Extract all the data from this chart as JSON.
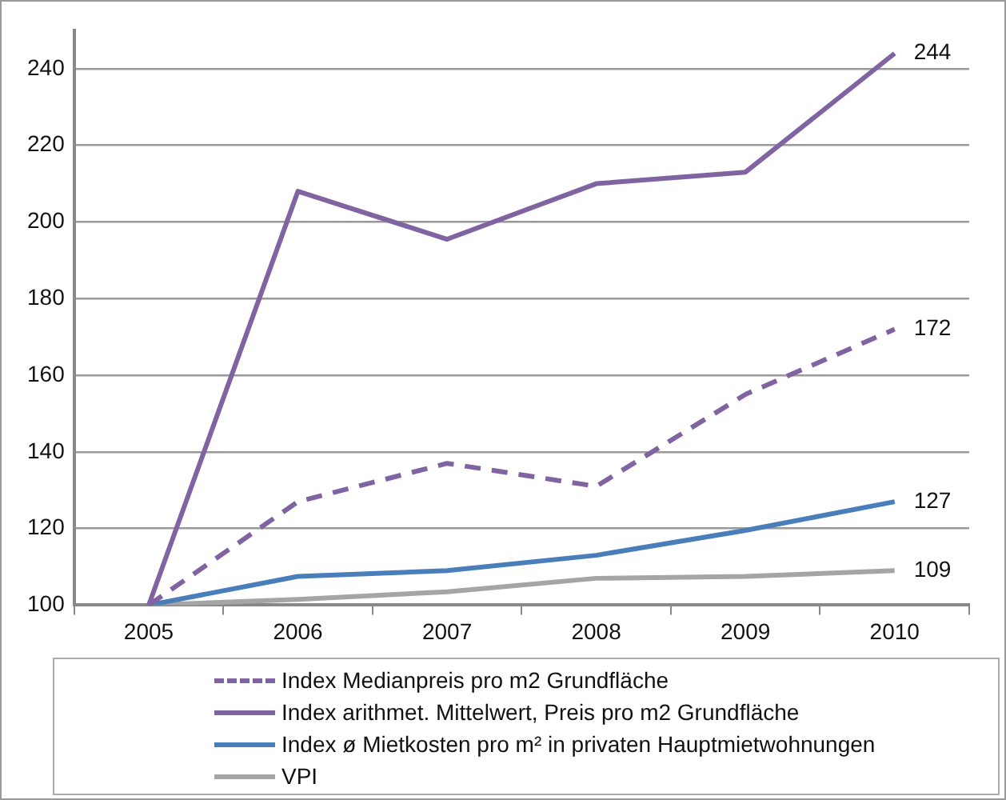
{
  "chart_data": {
    "type": "line",
    "categories": [
      "2005",
      "2006",
      "2007",
      "2008",
      "2009",
      "2010"
    ],
    "series": [
      {
        "name": "Index Medianpreis pro m2 Grundfläche",
        "color": "#8064a2",
        "line_style": "dashed",
        "values": [
          100,
          127,
          137,
          131,
          155,
          172
        ],
        "value_labels": [
          null,
          null,
          null,
          null,
          null,
          "172"
        ]
      },
      {
        "name": "Index arithmet. Mittelwert, Preis pro m2 Grundfläche",
        "color": "#8064a2",
        "values": [
          100,
          208,
          195.5,
          210,
          213,
          244
        ],
        "value_labels": [
          null,
          null,
          null,
          null,
          null,
          "244"
        ]
      },
      {
        "name": "Index ø Mietkosten pro m² in privaten Hauptmietwohnungen",
        "color": "#4a7ebb",
        "values": [
          100,
          107.5,
          109,
          113,
          119.5,
          127
        ],
        "value_labels": [
          null,
          null,
          null,
          null,
          null,
          "127"
        ]
      },
      {
        "name": "VPI",
        "color": "#a5a5a5",
        "values": [
          100,
          101.5,
          103.5,
          107,
          107.5,
          109
        ],
        "value_labels": [
          null,
          null,
          null,
          null,
          null,
          "109"
        ]
      }
    ],
    "ylim": [
      100,
      250
    ],
    "yticks": [
      100,
      120,
      140,
      160,
      180,
      200,
      220,
      240
    ],
    "grid": "y",
    "legend": "bottom",
    "marker": "none",
    "line_style": "solid"
  }
}
